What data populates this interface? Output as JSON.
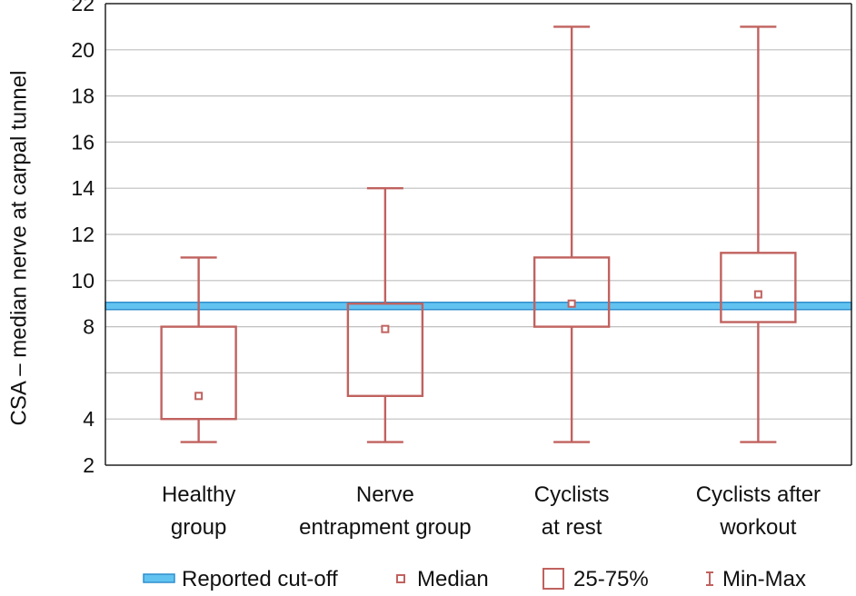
{
  "chart_data": {
    "type": "box",
    "ylabel": "CSA – median nerve at carpal tunnel",
    "ylim": [
      2,
      22
    ],
    "yticks": [
      2,
      4,
      6,
      8,
      10,
      12,
      14,
      16,
      18,
      20,
      22
    ],
    "ytick_labels": [
      "2",
      "4",
      "",
      "8",
      "10",
      "12",
      "14",
      "16",
      "18",
      "20",
      "22"
    ],
    "grid": "horizontal",
    "categories": [
      {
        "lines": [
          "Healthy",
          "group"
        ]
      },
      {
        "lines": [
          "Nerve",
          "entrapment group"
        ]
      },
      {
        "lines": [
          "Cyclists",
          "at rest"
        ]
      },
      {
        "lines": [
          "Cyclists after",
          "workout"
        ]
      }
    ],
    "boxes": [
      {
        "min": 3,
        "q1": 4,
        "median": 5,
        "q3": 8,
        "max": 11
      },
      {
        "min": 3,
        "q1": 5,
        "median": 7.9,
        "q3": 9,
        "max": 14
      },
      {
        "min": 3,
        "q1": 8,
        "median": 9,
        "q3": 11,
        "max": 21
      },
      {
        "min": 3,
        "q1": 8.2,
        "median": 9.4,
        "q3": 11.2,
        "max": 21
      }
    ],
    "reference_line": {
      "value": 8.9,
      "label": "Reported cut-off"
    },
    "legend": {
      "placement": "bottom",
      "items": [
        {
          "key": "cutoff",
          "label": "Reported cut-off"
        },
        {
          "key": "median",
          "label": "Median"
        },
        {
          "key": "box",
          "label": "25-75%"
        },
        {
          "key": "whisker",
          "label": "Min-Max"
        }
      ]
    },
    "colors": {
      "box": "#c0625f",
      "cutoff_fill": "#62c3f0",
      "cutoff_edge": "#2f8fce",
      "grid": "#bfbfbf",
      "axis": "#222222"
    }
  }
}
